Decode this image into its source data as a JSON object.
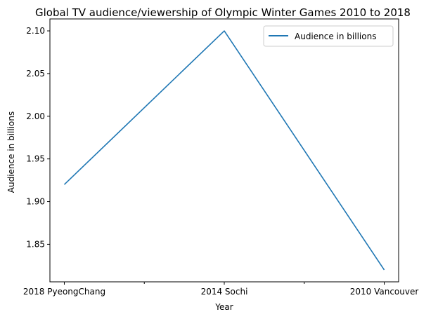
{
  "chart_data": {
    "type": "line",
    "title": "Global TV audience/viewership of Olympic Winter Games 2010 to 2018",
    "xlabel": "Year",
    "ylabel": "Audience in billions",
    "categories": [
      "2018 PyeongChang",
      "2014 Sochi",
      "2010 Vancouver"
    ],
    "series": [
      {
        "name": "Audience in billions",
        "values": [
          1.92,
          2.1,
          1.82
        ],
        "color": "#1f77b4"
      }
    ],
    "ylim": [
      1.806,
      2.114
    ],
    "yticks": [
      1.85,
      1.9,
      1.95,
      2.0,
      2.05,
      2.1
    ],
    "ytick_labels": [
      "1.85",
      "1.90",
      "1.95",
      "2.00",
      "2.05",
      "2.10"
    ],
    "xticks_minor": [
      0.5,
      1.5
    ],
    "grid": false,
    "legend": "top-right"
  }
}
